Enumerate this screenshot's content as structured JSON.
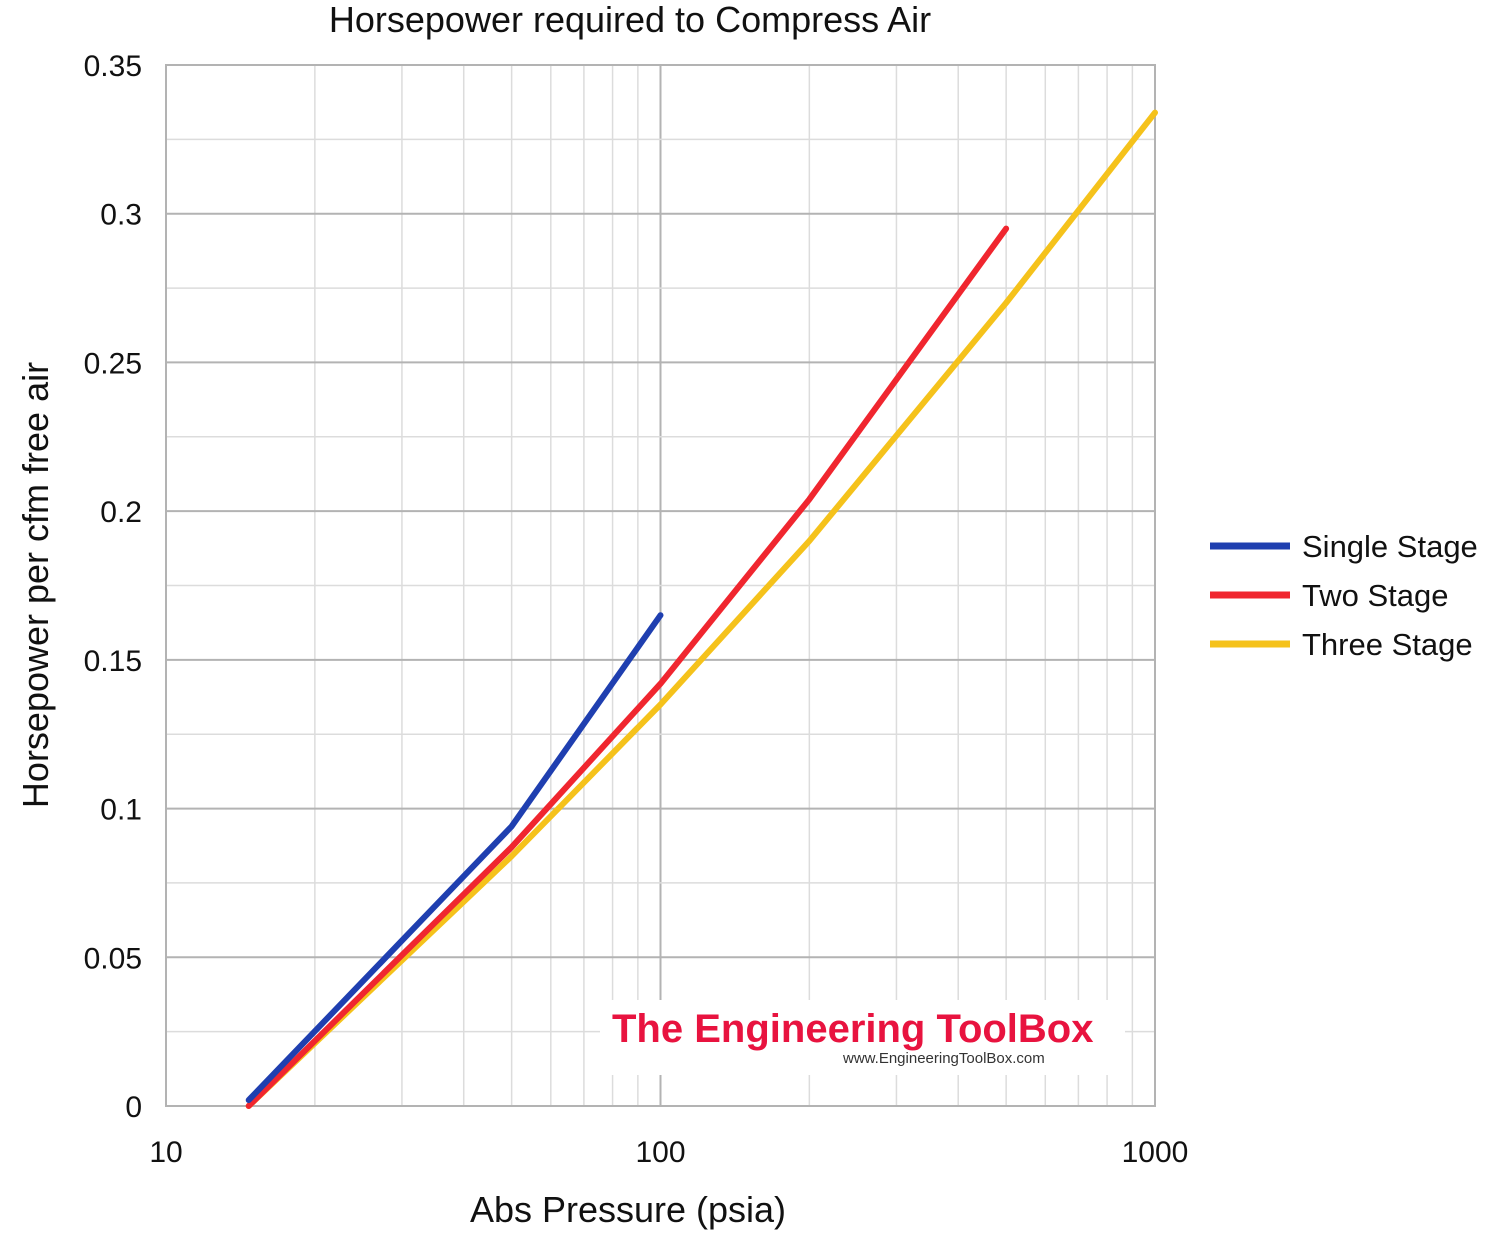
{
  "chart_data": {
    "type": "line",
    "title": "Horsepower required to Compress Air",
    "xlabel": "Abs Pressure (psia)",
    "ylabel": "Horsepower per cfm free air",
    "xscale": "log",
    "xlim": [
      10,
      1000
    ],
    "ylim": [
      0,
      0.35
    ],
    "x_ticks": [
      10,
      100,
      1000
    ],
    "x_tick_labels": [
      "10",
      "100",
      "1000"
    ],
    "y_ticks": [
      0,
      0.05,
      0.1,
      0.15,
      0.2,
      0.25,
      0.3,
      0.35
    ],
    "y_tick_labels": [
      "0",
      "0.05",
      "0.1",
      "0.15",
      "0.2",
      "0.25",
      "0.3",
      "0.35"
    ],
    "grid": true,
    "legend_position": "right",
    "series": [
      {
        "name": "Single Stage",
        "color": "#1f3fb0",
        "x": [
          14.7,
          50,
          100
        ],
        "y": [
          0.002,
          0.094,
          0.165
        ]
      },
      {
        "name": "Two Stage",
        "color": "#f0262f",
        "x": [
          14.7,
          50,
          100,
          200,
          500
        ],
        "y": [
          0.0,
          0.087,
          0.142,
          0.204,
          0.295
        ]
      },
      {
        "name": "Three Stage",
        "color": "#f5c21b",
        "x": [
          14.7,
          50,
          100,
          200,
          500,
          1000
        ],
        "y": [
          0.0,
          0.084,
          0.135,
          0.19,
          0.27,
          0.334
        ]
      }
    ]
  },
  "watermark": {
    "title": "The Engineering ToolBox",
    "url": "www.EngineeringToolBox.com"
  }
}
